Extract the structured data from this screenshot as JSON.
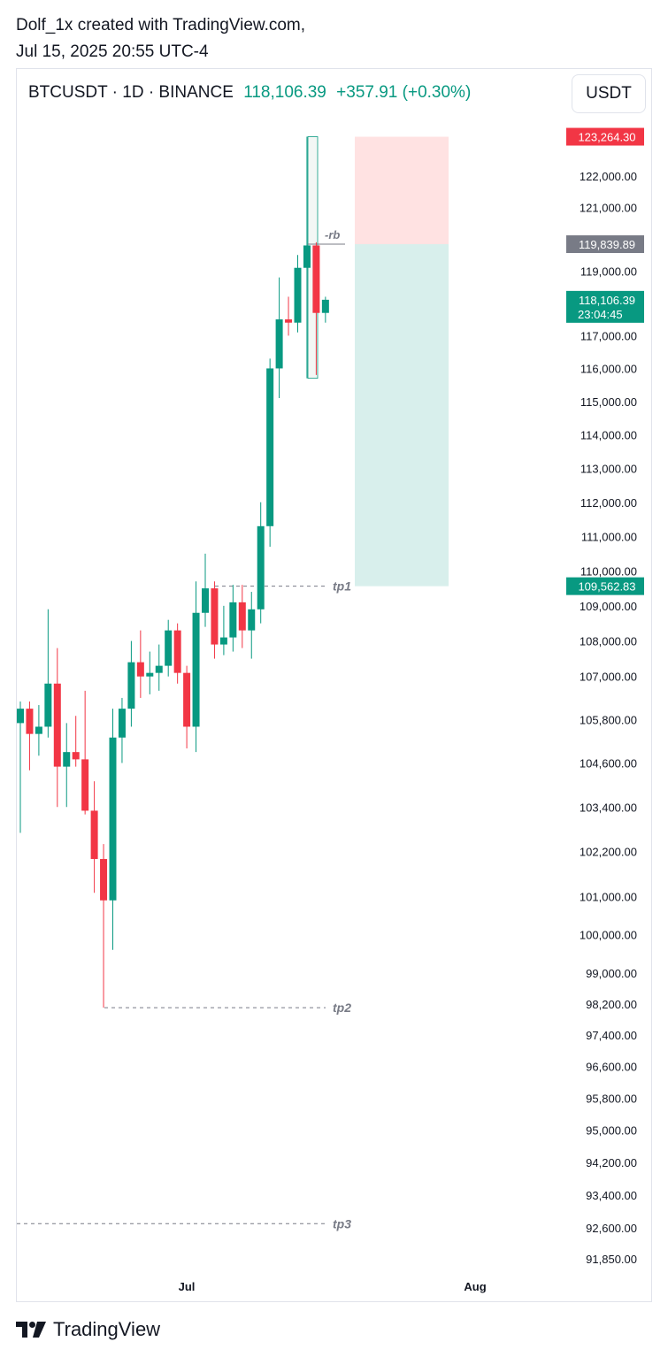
{
  "credit": {
    "line1": "Dolf_1x created with TradingView.com,",
    "line2": "Jul 15, 2025 20:55 UTC-4"
  },
  "header": {
    "symbol": "BTCUSDT · 1D · BINANCE",
    "price": "118,106.39",
    "change": "+357.91 (+0.30%)"
  },
  "currency_button": "USDT",
  "footer": {
    "brand": "TradingView",
    "logo_icon": "tradingview-logo-icon"
  },
  "colors": {
    "up": "#089981",
    "down": "#f23645",
    "stop_zone": "#ffe2e2",
    "target_zone": "#d8efec",
    "stop_label": "#f23645",
    "entry_label": "#787b86",
    "current_label": "#089981",
    "target_label": "#089981"
  },
  "chart_data": {
    "type": "candlestick",
    "symbol": "BTCUSDT",
    "interval": "1D",
    "exchange": "BINANCE",
    "y_axis": {
      "ticks": [
        "122,000.00",
        "121,000.00",
        "119,000.00",
        "117,000.00",
        "116,000.00",
        "115,000.00",
        "114,000.00",
        "113,000.00",
        "112,000.00",
        "111,000.00",
        "110,000.00",
        "109,000.00",
        "108,000.00",
        "107,000.00",
        "105,800.00",
        "104,600.00",
        "103,400.00",
        "102,200.00",
        "101,000.00",
        "100,000.00",
        "99,000.00",
        "98,200.00",
        "97,400.00",
        "96,600.00",
        "95,800.00",
        "95,000.00",
        "94,200.00",
        "93,400.00",
        "92,600.00",
        "91,850.00"
      ],
      "scale": "log"
    },
    "x_axis": {
      "ticks": [
        "Jul",
        "Aug"
      ]
    },
    "candles": [
      {
        "o": 105700,
        "h": 106300,
        "l": 102700,
        "c": 106100
      },
      {
        "o": 106100,
        "h": 106300,
        "l": 104400,
        "c": 105400
      },
      {
        "o": 105400,
        "h": 106200,
        "l": 104800,
        "c": 105600
      },
      {
        "o": 105600,
        "h": 108900,
        "l": 105300,
        "c": 106800
      },
      {
        "o": 106800,
        "h": 107800,
        "l": 103400,
        "c": 104500
      },
      {
        "o": 104500,
        "h": 105700,
        "l": 103400,
        "c": 104900
      },
      {
        "o": 104900,
        "h": 105900,
        "l": 104500,
        "c": 104700
      },
      {
        "o": 104700,
        "h": 106600,
        "l": 103200,
        "c": 103300
      },
      {
        "o": 103300,
        "h": 104100,
        "l": 101100,
        "c": 102000
      },
      {
        "o": 102000,
        "h": 102400,
        "l": 98100,
        "c": 100900
      },
      {
        "o": 100900,
        "h": 106100,
        "l": 99600,
        "c": 105300
      },
      {
        "o": 105300,
        "h": 106400,
        "l": 104600,
        "c": 106100
      },
      {
        "o": 106100,
        "h": 108000,
        "l": 105600,
        "c": 107400
      },
      {
        "o": 107400,
        "h": 108300,
        "l": 106400,
        "c": 107000
      },
      {
        "o": 107000,
        "h": 107700,
        "l": 106500,
        "c": 107100
      },
      {
        "o": 107100,
        "h": 107900,
        "l": 106600,
        "c": 107300
      },
      {
        "o": 107300,
        "h": 108600,
        "l": 107000,
        "c": 108300
      },
      {
        "o": 108300,
        "h": 108500,
        "l": 106800,
        "c": 107100
      },
      {
        "o": 107100,
        "h": 107300,
        "l": 105000,
        "c": 105600
      },
      {
        "o": 105600,
        "h": 109700,
        "l": 104900,
        "c": 108800
      },
      {
        "o": 108800,
        "h": 110500,
        "l": 108400,
        "c": 109500
      },
      {
        "o": 109500,
        "h": 109700,
        "l": 107500,
        "c": 107900
      },
      {
        "o": 107900,
        "h": 109000,
        "l": 107600,
        "c": 108100
      },
      {
        "o": 108100,
        "h": 109600,
        "l": 107700,
        "c": 109100
      },
      {
        "o": 109100,
        "h": 109600,
        "l": 107800,
        "c": 108300
      },
      {
        "o": 108300,
        "h": 109400,
        "l": 107500,
        "c": 108900
      },
      {
        "o": 108900,
        "h": 112000,
        "l": 108500,
        "c": 111300
      },
      {
        "o": 111300,
        "h": 116300,
        "l": 110700,
        "c": 116000
      },
      {
        "o": 116000,
        "h": 118800,
        "l": 115100,
        "c": 117500
      },
      {
        "o": 117500,
        "h": 118200,
        "l": 117000,
        "c": 117400
      },
      {
        "o": 117400,
        "h": 119500,
        "l": 117100,
        "c": 119100
      },
      {
        "o": 119100,
        "h": 123264.3,
        "l": 115700,
        "c": 119800
      },
      {
        "o": 119800,
        "h": 119900,
        "l": 115800,
        "c": 117700
      },
      {
        "o": 117700,
        "h": 118200,
        "l": 117400,
        "c": 118106.39
      }
    ],
    "price_labels": [
      {
        "label": "123,264.30",
        "value": 123264.3,
        "kind": "stop"
      },
      {
        "label": "119,839.89",
        "value": 119839.89,
        "kind": "entry"
      },
      {
        "label": "118,106.39",
        "value": 118106.39,
        "countdown": "23:04:45",
        "kind": "current"
      },
      {
        "label": "109,562.83",
        "value": 109562.83,
        "kind": "target"
      }
    ],
    "levels": [
      {
        "name": "-rb",
        "value": 119839.89
      },
      {
        "name": "tp1",
        "value": 109562.83
      },
      {
        "name": "tp2",
        "value": 98100
      },
      {
        "name": "tp3",
        "value": 92700
      }
    ],
    "position_box": {
      "entry": 119839.89,
      "stop": 123264.3,
      "target": 109562.83
    }
  }
}
